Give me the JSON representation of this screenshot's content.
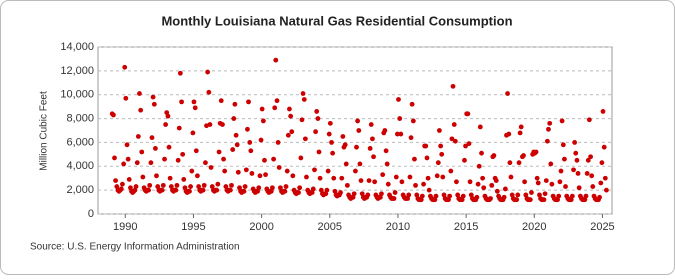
{
  "chart_data": {
    "type": "scatter",
    "title": "Monthly Louisiana Natural Gas Residential Consumption",
    "y_label": "Million Cubic Feet",
    "source": "Source: U.S. Energy Information Administration",
    "color": "#cc0000",
    "grid": true,
    "xlim": [
      1988,
      2025.7
    ],
    "xticks": [
      1990,
      1995,
      2000,
      2005,
      2010,
      2015,
      2020,
      2025
    ],
    "ylim": [
      0,
      14000
    ],
    "yticks": [
      0,
      {
        "value": 2000,
        "label": "2,000"
      },
      {
        "value": 4000,
        "label": "4,000"
      },
      {
        "value": 6000,
        "label": "6,000"
      },
      {
        "value": 8000,
        "label": "8,000"
      },
      {
        "value": 10000,
        "label": "10,000"
      },
      {
        "value": 12000,
        "label": "12,000"
      },
      {
        "value": 14000,
        "label": "14,000"
      }
    ],
    "x": [
      1989.04,
      1989.13,
      1989.21,
      1989.29,
      1989.38,
      1989.46,
      1989.54,
      1989.63,
      1989.71,
      1989.79,
      1989.88,
      1989.96,
      1990.04,
      1990.13,
      1990.21,
      1990.29,
      1990.38,
      1990.46,
      1990.54,
      1990.63,
      1990.71,
      1990.79,
      1990.88,
      1990.96,
      1991.04,
      1991.13,
      1991.21,
      1991.29,
      1991.38,
      1991.46,
      1991.54,
      1991.63,
      1991.71,
      1991.79,
      1991.88,
      1991.96,
      1992.04,
      1992.13,
      1992.21,
      1992.29,
      1992.38,
      1992.46,
      1992.54,
      1992.63,
      1992.71,
      1992.79,
      1992.88,
      1992.96,
      1993.04,
      1993.13,
      1993.21,
      1993.29,
      1993.38,
      1993.46,
      1993.54,
      1993.63,
      1993.71,
      1993.79,
      1993.88,
      1993.96,
      1994.04,
      1994.13,
      1994.21,
      1994.29,
      1994.38,
      1994.46,
      1994.54,
      1994.63,
      1994.71,
      1994.79,
      1994.88,
      1994.96,
      1995.04,
      1995.13,
      1995.21,
      1995.29,
      1995.38,
      1995.46,
      1995.54,
      1995.63,
      1995.71,
      1995.79,
      1995.88,
      1995.96,
      1996.04,
      1996.13,
      1996.21,
      1996.29,
      1996.38,
      1996.46,
      1996.54,
      1996.63,
      1996.71,
      1996.79,
      1996.88,
      1996.96,
      1997.04,
      1997.13,
      1997.21,
      1997.29,
      1997.38,
      1997.46,
      1997.54,
      1997.63,
      1997.71,
      1997.79,
      1997.88,
      1997.96,
      1998.04,
      1998.13,
      1998.21,
      1998.29,
      1998.38,
      1998.46,
      1998.54,
      1998.63,
      1998.71,
      1998.79,
      1998.88,
      1998.96,
      1999.04,
      1999.13,
      1999.21,
      1999.29,
      1999.38,
      1999.46,
      1999.54,
      1999.63,
      1999.71,
      1999.79,
      1999.88,
      1999.96,
      2000.04,
      2000.13,
      2000.21,
      2000.29,
      2000.38,
      2000.46,
      2000.54,
      2000.63,
      2000.71,
      2000.79,
      2000.88,
      2000.96,
      2001.04,
      2001.13,
      2001.21,
      2001.29,
      2001.38,
      2001.46,
      2001.54,
      2001.63,
      2001.71,
      2001.79,
      2001.88,
      2001.96,
      2002.04,
      2002.13,
      2002.21,
      2002.29,
      2002.38,
      2002.46,
      2002.54,
      2002.63,
      2002.71,
      2002.79,
      2002.88,
      2002.96,
      2003.04,
      2003.13,
      2003.21,
      2003.29,
      2003.38,
      2003.46,
      2003.54,
      2003.63,
      2003.71,
      2003.79,
      2003.88,
      2003.96,
      2004.04,
      2004.13,
      2004.21,
      2004.29,
      2004.38,
      2004.46,
      2004.54,
      2004.63,
      2004.71,
      2004.79,
      2004.88,
      2004.96,
      2005.04,
      2005.13,
      2005.21,
      2005.29,
      2005.38,
      2005.46,
      2005.54,
      2005.63,
      2005.71,
      2005.79,
      2005.88,
      2005.96,
      2006.04,
      2006.13,
      2006.21,
      2006.29,
      2006.38,
      2006.46,
      2006.54,
      2006.63,
      2006.71,
      2006.79,
      2006.88,
      2006.96,
      2007.04,
      2007.13,
      2007.21,
      2007.29,
      2007.38,
      2007.46,
      2007.54,
      2007.63,
      2007.71,
      2007.79,
      2007.88,
      2007.96,
      2008.04,
      2008.13,
      2008.21,
      2008.29,
      2008.38,
      2008.46,
      2008.54,
      2008.63,
      2008.71,
      2008.79,
      2008.88,
      2008.96,
      2009.04,
      2009.13,
      2009.21,
      2009.29,
      2009.38,
      2009.46,
      2009.54,
      2009.63,
      2009.71,
      2009.79,
      2009.88,
      2009.96,
      2010.04,
      2010.13,
      2010.21,
      2010.29,
      2010.38,
      2010.46,
      2010.54,
      2010.63,
      2010.71,
      2010.79,
      2010.88,
      2010.96,
      2011.04,
      2011.13,
      2011.21,
      2011.29,
      2011.38,
      2011.46,
      2011.54,
      2011.63,
      2011.71,
      2011.79,
      2011.88,
      2011.96,
      2012.04,
      2012.13,
      2012.21,
      2012.29,
      2012.38,
      2012.46,
      2012.54,
      2012.63,
      2012.71,
      2012.79,
      2012.88,
      2012.96,
      2013.04,
      2013.13,
      2013.21,
      2013.29,
      2013.38,
      2013.46,
      2013.54,
      2013.63,
      2013.71,
      2013.79,
      2013.88,
      2013.96,
      2014.04,
      2014.13,
      2014.21,
      2014.29,
      2014.38,
      2014.46,
      2014.54,
      2014.63,
      2014.71,
      2014.79,
      2014.88,
      2014.96,
      2015.04,
      2015.13,
      2015.21,
      2015.29,
      2015.38,
      2015.46,
      2015.54,
      2015.63,
      2015.71,
      2015.79,
      2015.88,
      2015.96,
      2016.04,
      2016.13,
      2016.21,
      2016.29,
      2016.38,
      2016.46,
      2016.54,
      2016.63,
      2016.71,
      2016.79,
      2016.88,
      2016.96,
      2017.04,
      2017.13,
      2017.21,
      2017.29,
      2017.38,
      2017.46,
      2017.54,
      2017.63,
      2017.71,
      2017.79,
      2017.88,
      2017.96,
      2018.04,
      2018.13,
      2018.21,
      2018.29,
      2018.38,
      2018.46,
      2018.54,
      2018.63,
      2018.71,
      2018.79,
      2018.88,
      2018.96,
      2019.04,
      2019.13,
      2019.21,
      2019.29,
      2019.38,
      2019.46,
      2019.54,
      2019.63,
      2019.71,
      2019.79,
      2019.88,
      2019.96,
      2020.04,
      2020.13,
      2020.21,
      2020.29,
      2020.38,
      2020.46,
      2020.54,
      2020.63,
      2020.71,
      2020.79,
      2020.88,
      2020.96,
      2021.04,
      2021.13,
      2021.21,
      2021.29,
      2021.38,
      2021.46,
      2021.54,
      2021.63,
      2021.71,
      2021.79,
      2021.88,
      2021.96,
      2022.04,
      2022.13,
      2022.21,
      2022.29,
      2022.38,
      2022.46,
      2022.54,
      2022.63,
      2022.71,
      2022.79,
      2022.88,
      2022.96,
      2023.04,
      2023.13,
      2023.21,
      2023.29,
      2023.38,
      2023.46,
      2023.54,
      2023.63,
      2023.71,
      2023.79,
      2023.88,
      2023.96,
      2024.04,
      2024.13,
      2024.21,
      2024.29,
      2024.38,
      2024.46,
      2024.54,
      2024.63,
      2024.71,
      2024.79,
      2024.88,
      2024.96,
      2025.04,
      2025.13,
      2025.21,
      2025.29
    ],
    "values": [
      8400,
      8300,
      4700,
      2800,
      2300,
      2000,
      1900,
      2000,
      2100,
      2500,
      4200,
      12300,
      9700,
      5800,
      4600,
      2900,
      2200,
      1900,
      1800,
      1900,
      2000,
      2300,
      4300,
      6500,
      10100,
      8700,
      5200,
      3100,
      2200,
      2000,
      1900,
      2000,
      2000,
      2400,
      4300,
      6400,
      9800,
      9200,
      5500,
      3200,
      2300,
      2000,
      1900,
      2000,
      2000,
      2400,
      4600,
      7500,
      8500,
      8200,
      5600,
      3000,
      2300,
      2000,
      1900,
      2000,
      2000,
      2400,
      4500,
      7200,
      11800,
      9400,
      5000,
      2900,
      2200,
      1900,
      1800,
      1900,
      1900,
      2300,
      3600,
      6800,
      9400,
      8900,
      5300,
      3200,
      2300,
      2000,
      1900,
      2000,
      2000,
      2400,
      4300,
      7400,
      11900,
      10200,
      7500,
      3900,
      2300,
      2000,
      1900,
      2000,
      2000,
      2500,
      5200,
      7600,
      9500,
      7500,
      4600,
      3600,
      2300,
      2000,
      1900,
      2000,
      2000,
      2400,
      5400,
      8000,
      9200,
      6600,
      5800,
      3500,
      2200,
      1900,
      1800,
      1900,
      1900,
      2300,
      3700,
      7100,
      9400,
      6000,
      5300,
      3400,
      2100,
      1900,
      1800,
      1900,
      1900,
      2200,
      3200,
      6200,
      8800,
      7800,
      4500,
      3300,
      2100,
      1900,
      1800,
      1900,
      1900,
      2200,
      4600,
      8900,
      12900,
      9500,
      6000,
      3900,
      2200,
      1900,
      1800,
      1900,
      1900,
      2300,
      3600,
      6600,
      8800,
      8200,
      6900,
      3200,
      2000,
      1800,
      1700,
      1800,
      1800,
      2200,
      4700,
      7900,
      10100,
      9600,
      6300,
      3100,
      2000,
      1800,
      1700,
      1800,
      1800,
      2100,
      3700,
      6900,
      8600,
      8000,
      5200,
      3000,
      2000,
      1700,
      1600,
      1700,
      1700,
      2000,
      3600,
      6700,
      7600,
      6000,
      5100,
      3000,
      1900,
      1600,
      1500,
      1600,
      1600,
      1800,
      3000,
      6500,
      5600,
      5800,
      4200,
      2400,
      1600,
      1400,
      1300,
      1400,
      1400,
      1700,
      3600,
      5600,
      7800,
      7000,
      4200,
      2800,
      1700,
      1400,
      1300,
      1400,
      1400,
      1600,
      2800,
      5500,
      7500,
      6300,
      4800,
      2700,
      1600,
      1400,
      1300,
      1400,
      1400,
      1700,
      3300,
      6800,
      7000,
      5300,
      4200,
      2500,
      1600,
      1400,
      1300,
      1300,
      1300,
      1800,
      3100,
      6700,
      9600,
      8000,
      6700,
      2700,
      1600,
      1400,
      1300,
      1300,
      1300,
      1600,
      3100,
      6400,
      9200,
      7800,
      4600,
      2400,
      1600,
      1300,
      1200,
      1200,
      1200,
      1500,
      2500,
      5700,
      5700,
      4700,
      3000,
      2000,
      1500,
      1300,
      1200,
      1200,
      1200,
      1500,
      3200,
      4300,
      7000,
      5700,
      5000,
      3100,
      1600,
      1300,
      1200,
      1200,
      1200,
      1500,
      3600,
      6300,
      10700,
      7500,
      6100,
      2700,
      1600,
      1300,
      1200,
      1200,
      1200,
      1500,
      4500,
      5700,
      8400,
      8400,
      5900,
      2700,
      1600,
      1300,
      1200,
      1200,
      1200,
      1400,
      2500,
      4000,
      7300,
      5100,
      3000,
      2200,
      1500,
      1300,
      1200,
      1200,
      1200,
      1300,
      2400,
      4800,
      4900,
      3000,
      2800,
      1900,
      1500,
      1300,
      1200,
      1200,
      1200,
      1400,
      2100,
      6600,
      10100,
      6700,
      4300,
      3100,
      1600,
      1300,
      1200,
      1200,
      1200,
      1600,
      4300,
      6800,
      7300,
      4800,
      4900,
      2700,
      1600,
      1300,
      1200,
      1200,
      1200,
      1800,
      5000,
      5200,
      5100,
      5200,
      3000,
      2600,
      1600,
      1300,
      1200,
      1200,
      1200,
      1700,
      2800,
      6100,
      7100,
      7600,
      4200,
      2500,
      1500,
      1300,
      1200,
      1200,
      1200,
      1500,
      2700,
      3600,
      7800,
      5800,
      4600,
      2300,
      1500,
      1300,
      1200,
      1200,
      1200,
      1500,
      3700,
      6000,
      5100,
      4500,
      3400,
      2200,
      1500,
      1300,
      1200,
      1200,
      1200,
      1500,
      3400,
      4500,
      7900,
      4800,
      3200,
      2300,
      1500,
      1300,
      1200,
      1200,
      1200,
      1400,
      2600,
      4300,
      8600,
      5600,
      3000,
      2000
    ]
  }
}
